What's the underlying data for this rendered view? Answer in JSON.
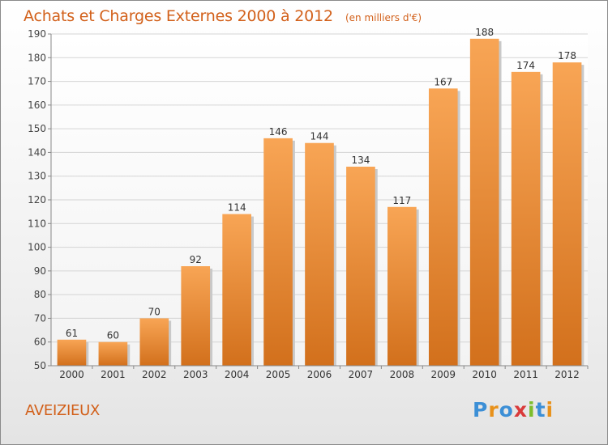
{
  "header": {
    "title": "Achats et Charges Externes 2000 à 2012",
    "unit": "(en milliers d'€)"
  },
  "footer": {
    "commune": "AVEIZIEUX",
    "logo_text": "Proxiti",
    "logo_colors": [
      "#3c8fd6",
      "#e8911a",
      "#3c8fd6",
      "#d93a3a",
      "#7cbd2b",
      "#3c8fd6",
      "#e8911a"
    ]
  },
  "colors": {
    "bar_light": "#f8a555",
    "bar_dark": "#d2701c",
    "accent": "#d2601a"
  },
  "chart_data": {
    "type": "bar",
    "categories": [
      "2000",
      "2001",
      "2002",
      "2003",
      "2004",
      "2005",
      "2006",
      "2007",
      "2008",
      "2009",
      "2010",
      "2011",
      "2012"
    ],
    "values": [
      61,
      60,
      70,
      92,
      114,
      146,
      144,
      134,
      117,
      167,
      188,
      174,
      178
    ],
    "title": "Achats et Charges Externes 2000 à 2012",
    "xlabel": "",
    "ylabel": "",
    "ylim": [
      50,
      190
    ],
    "yticks": [
      50,
      60,
      70,
      80,
      90,
      100,
      110,
      120,
      130,
      140,
      150,
      160,
      170,
      180,
      190
    ],
    "grid": true,
    "data_labels": true
  }
}
